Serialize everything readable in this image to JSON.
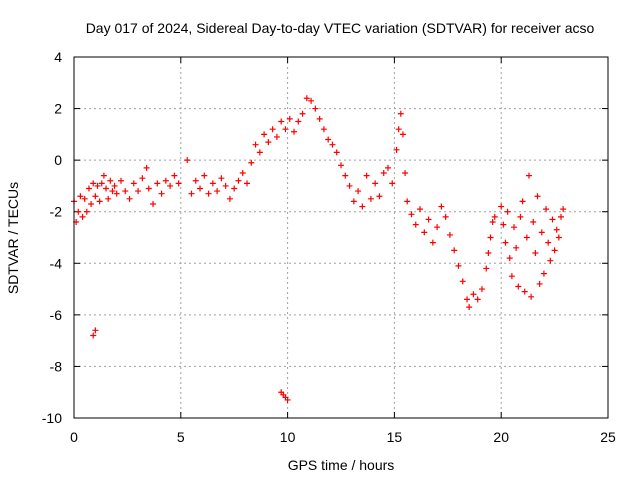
{
  "chart_data": {
    "type": "scatter",
    "title": "Day 017 of 2024, Sidereal Day-to-day VTEC variation (SDTVAR) for receiver acso",
    "xlabel": "GPS time / hours",
    "ylabel": "SDTVAR / TECUs",
    "xlim": [
      0,
      25
    ],
    "ylim": [
      -10,
      4
    ],
    "xticks": [
      0,
      5,
      10,
      15,
      20,
      25
    ],
    "yticks": [
      -10,
      -8,
      -6,
      -4,
      -2,
      0,
      2,
      4
    ],
    "grid": true,
    "marker": "+",
    "color": "#ff0000",
    "series": [
      {
        "name": "SDTVAR",
        "points": [
          [
            0.0,
            -1.6
          ],
          [
            0.1,
            -2.4
          ],
          [
            0.2,
            -2.0
          ],
          [
            0.3,
            -1.4
          ],
          [
            0.4,
            -2.2
          ],
          [
            0.5,
            -1.5
          ],
          [
            0.6,
            -2.0
          ],
          [
            0.7,
            -1.1
          ],
          [
            0.8,
            -1.7
          ],
          [
            0.9,
            -0.9
          ],
          [
            1.0,
            -1.4
          ],
          [
            1.1,
            -1.0
          ],
          [
            1.2,
            -1.6
          ],
          [
            1.3,
            -0.9
          ],
          [
            1.4,
            -0.6
          ],
          [
            1.5,
            -1.1
          ],
          [
            1.6,
            -1.5
          ],
          [
            1.7,
            -0.8
          ],
          [
            1.8,
            -1.2
          ],
          [
            1.9,
            -1.0
          ],
          [
            2.0,
            -1.3
          ],
          [
            2.2,
            -0.8
          ],
          [
            2.4,
            -1.2
          ],
          [
            2.6,
            -1.5
          ],
          [
            2.8,
            -0.9
          ],
          [
            3.0,
            -1.2
          ],
          [
            3.2,
            -0.7
          ],
          [
            3.4,
            -0.3
          ],
          [
            3.5,
            -1.1
          ],
          [
            3.7,
            -1.7
          ],
          [
            3.9,
            -0.9
          ],
          [
            4.1,
            -1.3
          ],
          [
            4.3,
            -0.8
          ],
          [
            4.5,
            -1.0
          ],
          [
            4.7,
            -0.6
          ],
          [
            4.9,
            -0.9
          ],
          [
            5.3,
            0.0
          ],
          [
            5.5,
            -1.3
          ],
          [
            5.7,
            -0.8
          ],
          [
            5.9,
            -1.1
          ],
          [
            6.1,
            -0.6
          ],
          [
            6.3,
            -1.3
          ],
          [
            6.5,
            -0.9
          ],
          [
            6.7,
            -1.2
          ],
          [
            6.9,
            -0.7
          ],
          [
            7.1,
            -1.0
          ],
          [
            7.3,
            -1.5
          ],
          [
            7.5,
            -1.1
          ],
          [
            7.7,
            -0.8
          ],
          [
            7.9,
            -0.5
          ],
          [
            8.1,
            -0.9
          ],
          [
            8.3,
            -0.1
          ],
          [
            8.5,
            0.6
          ],
          [
            8.7,
            0.3
          ],
          [
            8.9,
            1.0
          ],
          [
            9.1,
            0.7
          ],
          [
            9.3,
            1.2
          ],
          [
            9.5,
            0.9
          ],
          [
            9.7,
            1.5
          ],
          [
            9.9,
            1.2
          ],
          [
            10.1,
            1.6
          ],
          [
            10.3,
            1.1
          ],
          [
            10.5,
            1.5
          ],
          [
            10.7,
            1.8
          ],
          [
            10.9,
            2.4
          ],
          [
            11.1,
            2.3
          ],
          [
            11.3,
            2.0
          ],
          [
            11.5,
            1.6
          ],
          [
            11.7,
            1.2
          ],
          [
            11.9,
            0.8
          ],
          [
            12.1,
            0.6
          ],
          [
            12.3,
            0.3
          ],
          [
            12.5,
            -0.2
          ],
          [
            12.7,
            -0.6
          ],
          [
            12.9,
            -1.0
          ],
          [
            13.1,
            -1.6
          ],
          [
            13.3,
            -1.2
          ],
          [
            13.5,
            -1.8
          ],
          [
            13.7,
            -0.6
          ],
          [
            13.9,
            -1.5
          ],
          [
            14.1,
            -0.9
          ],
          [
            14.3,
            -1.4
          ],
          [
            14.5,
            -0.5
          ],
          [
            14.7,
            -0.3
          ],
          [
            14.9,
            -0.9
          ],
          [
            15.1,
            0.4
          ],
          [
            15.2,
            1.2
          ],
          [
            15.3,
            1.8
          ],
          [
            15.4,
            1.0
          ],
          [
            15.5,
            -0.5
          ],
          [
            15.6,
            -1.6
          ],
          [
            15.8,
            -2.1
          ],
          [
            16.0,
            -2.5
          ],
          [
            16.2,
            -1.9
          ],
          [
            16.4,
            -2.8
          ],
          [
            16.6,
            -2.3
          ],
          [
            16.8,
            -3.2
          ],
          [
            17.0,
            -2.6
          ],
          [
            17.2,
            -1.8
          ],
          [
            17.4,
            -2.2
          ],
          [
            17.6,
            -2.9
          ],
          [
            17.8,
            -3.5
          ],
          [
            18.0,
            -4.1
          ],
          [
            18.2,
            -4.7
          ],
          [
            18.4,
            -5.4
          ],
          [
            18.5,
            -5.7
          ],
          [
            18.7,
            -5.2
          ],
          [
            18.9,
            -5.4
          ],
          [
            19.1,
            -5.0
          ],
          [
            19.3,
            -4.2
          ],
          [
            19.4,
            -3.6
          ],
          [
            19.5,
            -3.0
          ],
          [
            19.6,
            -2.4
          ],
          [
            19.7,
            -2.2
          ],
          [
            20.0,
            -1.8
          ],
          [
            20.1,
            -2.5
          ],
          [
            20.2,
            -3.2
          ],
          [
            20.3,
            -2.0
          ],
          [
            20.4,
            -3.8
          ],
          [
            20.5,
            -4.5
          ],
          [
            20.6,
            -2.6
          ],
          [
            20.7,
            -3.4
          ],
          [
            20.8,
            -4.9
          ],
          [
            20.9,
            -2.2
          ],
          [
            21.0,
            -1.6
          ],
          [
            21.1,
            -5.1
          ],
          [
            21.2,
            -3.0
          ],
          [
            21.3,
            -0.6
          ],
          [
            21.4,
            -5.3
          ],
          [
            21.5,
            -2.4
          ],
          [
            21.6,
            -3.6
          ],
          [
            21.7,
            -1.4
          ],
          [
            21.8,
            -4.8
          ],
          [
            21.9,
            -2.8
          ],
          [
            22.0,
            -4.4
          ],
          [
            22.1,
            -1.9
          ],
          [
            22.2,
            -3.2
          ],
          [
            22.3,
            -3.9
          ],
          [
            22.4,
            -2.3
          ],
          [
            22.5,
            -3.5
          ],
          [
            22.6,
            -2.7
          ],
          [
            22.7,
            -3.0
          ],
          [
            22.8,
            -2.2
          ],
          [
            22.9,
            -1.9
          ],
          [
            0.9,
            -6.8
          ],
          [
            1.0,
            -6.6
          ],
          [
            9.7,
            -9.0
          ],
          [
            9.8,
            -9.1
          ],
          [
            9.9,
            -9.2
          ],
          [
            10.0,
            -9.3
          ]
        ]
      }
    ]
  }
}
